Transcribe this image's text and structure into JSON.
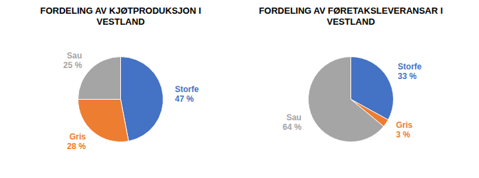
{
  "chart_data": [
    {
      "type": "pie",
      "title": "FORDELING AV KJØTPRODUKSJON I\nVESTLAND",
      "categories": [
        "Storfe",
        "Gris",
        "Sau"
      ],
      "values": [
        47,
        28,
        25
      ],
      "value_labels": [
        "47 %",
        "28 %",
        "25 %"
      ],
      "colors": [
        "#4472C4",
        "#ED7D31",
        "#A5A5A5"
      ],
      "data_labels": true
    },
    {
      "type": "pie",
      "title": "FORDELING AV FØRETAKSLEVERANSAR I\nVESTLAND",
      "categories": [
        "Storfe",
        "Gris",
        "Sau"
      ],
      "values": [
        33,
        3,
        64
      ],
      "value_labels": [
        "33 %",
        "3 %",
        "64 %"
      ],
      "colors": [
        "#4472C4",
        "#ED7D31",
        "#A5A5A5"
      ],
      "data_labels": true
    }
  ]
}
